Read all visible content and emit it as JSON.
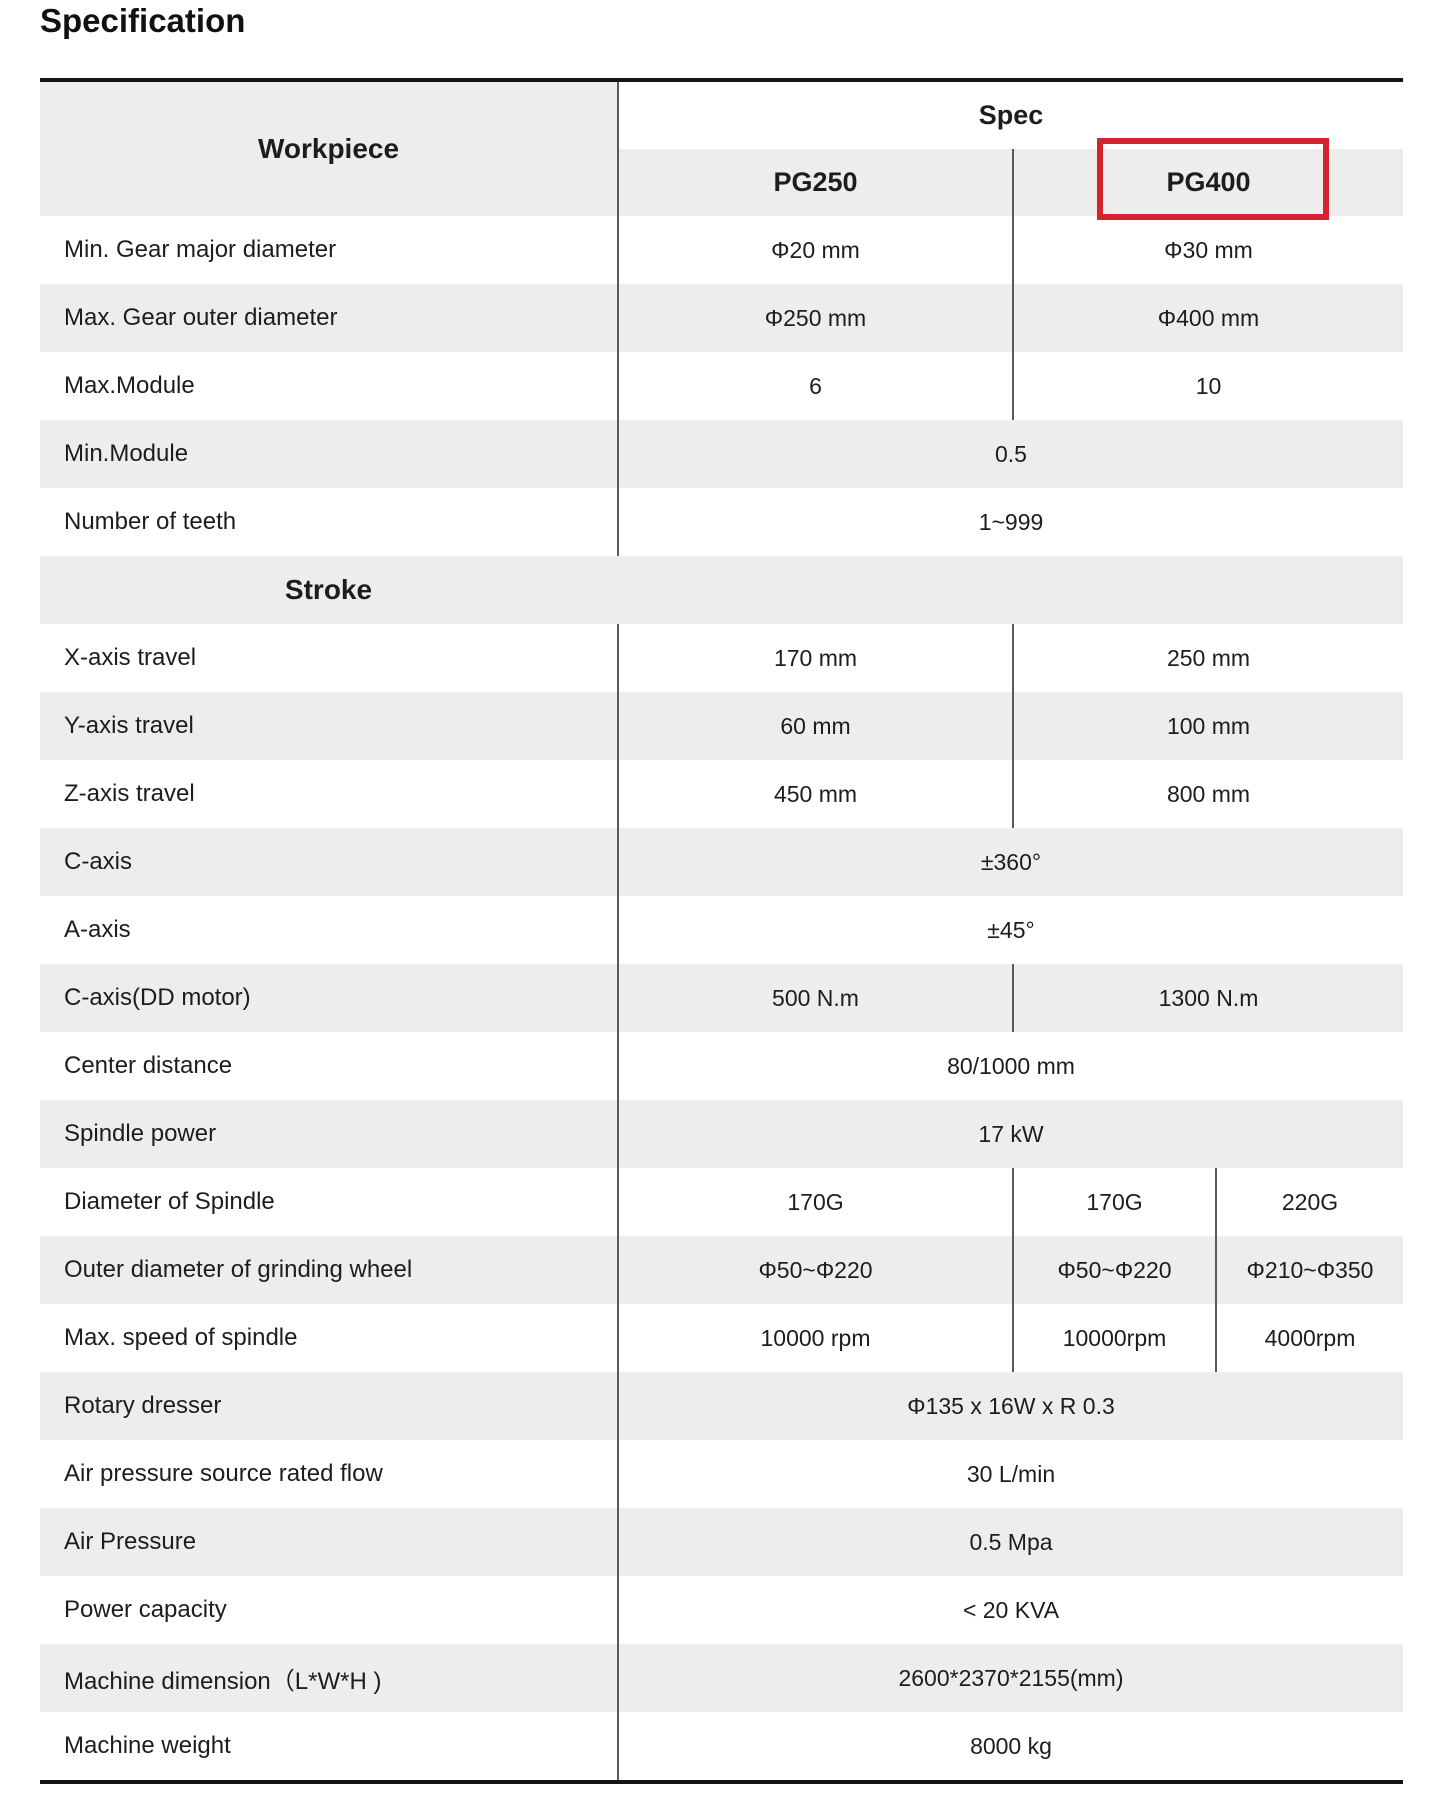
{
  "page": {
    "title": "Specification"
  },
  "table": {
    "header": {
      "workpiece_label": "Workpiece",
      "spec_label": "Spec",
      "col1_label": "PG250",
      "col2_label": "PG400",
      "highlight_color": "#d4252e"
    },
    "colors": {
      "row_shade": "#ededed",
      "divider": "#5a5a5a",
      "border": "#141414"
    },
    "rows": [
      {
        "label": "Min. Gear major diameter",
        "values": [
          "Φ20 mm",
          "Φ30 mm"
        ]
      },
      {
        "label": "Max. Gear outer diameter",
        "values": [
          "Φ250 mm",
          "Φ400 mm"
        ]
      },
      {
        "label": "Max.Module",
        "values": [
          "6",
          "10"
        ]
      },
      {
        "label": "Min.Module",
        "values": [
          "0.5"
        ]
      },
      {
        "label": "Number of teeth",
        "values": [
          "1~999"
        ]
      },
      {
        "section": "Stroke"
      },
      {
        "label": "X-axis travel",
        "values": [
          "170 mm",
          "250 mm"
        ]
      },
      {
        "label": "Y-axis travel",
        "values": [
          "60 mm",
          "100 mm"
        ]
      },
      {
        "label": "Z-axis travel",
        "values": [
          "450 mm",
          "800 mm"
        ]
      },
      {
        "label": "C-axis",
        "values": [
          "±360°"
        ]
      },
      {
        "label": "A-axis",
        "values": [
          "±45°"
        ]
      },
      {
        "label": "C-axis(DD motor)",
        "values": [
          "500 N.m",
          "1300 N.m"
        ]
      },
      {
        "label": "Center distance",
        "values": [
          "80/1000 mm"
        ]
      },
      {
        "label": "Spindle power",
        "values": [
          "17 kW"
        ]
      },
      {
        "label": "Diameter of Spindle",
        "values": [
          "170G",
          "170G",
          "220G"
        ]
      },
      {
        "label": "Outer diameter of grinding wheel",
        "values": [
          "Φ50~Φ220",
          "Φ50~Φ220",
          "Φ210~Φ350"
        ]
      },
      {
        "label": "Max. speed of spindle",
        "values": [
          "10000 rpm",
          "10000rpm",
          "4000rpm"
        ]
      },
      {
        "label": "Rotary dresser",
        "values": [
          "Φ135 x 16W x R 0.3"
        ]
      },
      {
        "label": "Air pressure source rated flow",
        "values": [
          "30 L/min"
        ]
      },
      {
        "label": "Air Pressure",
        "values": [
          "0.5 Mpa"
        ]
      },
      {
        "label": "Power capacity",
        "values": [
          "< 20 KVA"
        ]
      },
      {
        "label": "Machine dimension（L*W*H )",
        "values": [
          "2600*2370*2155(mm)"
        ]
      },
      {
        "label": "Machine weight",
        "values": [
          "8000 kg"
        ]
      }
    ]
  }
}
